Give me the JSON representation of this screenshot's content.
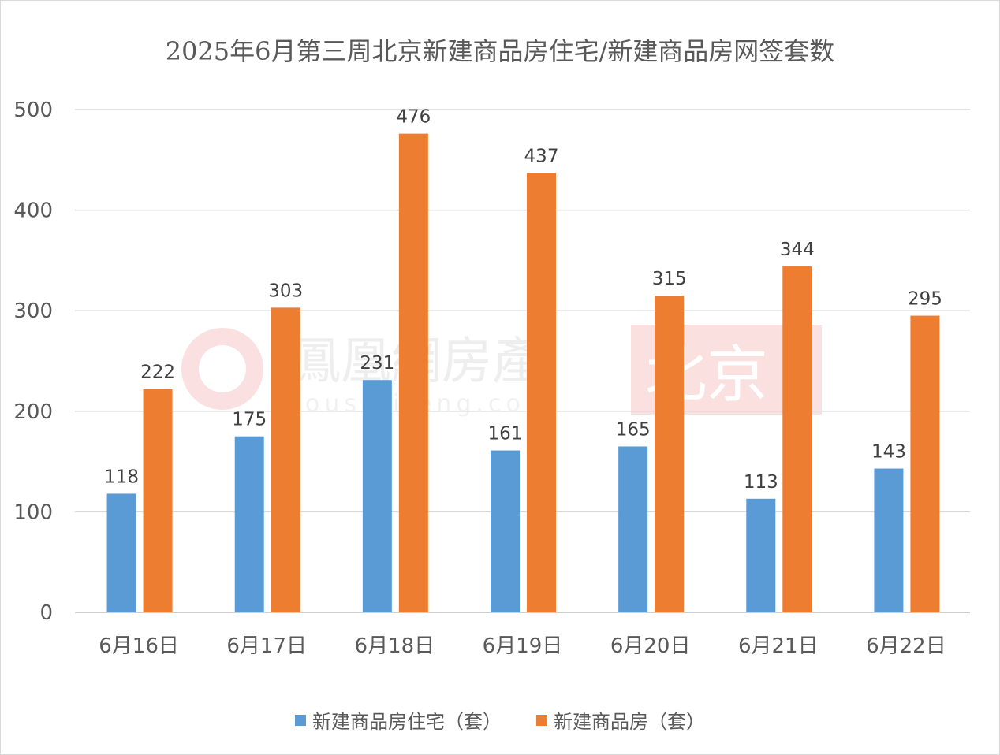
{
  "chart_data": {
    "type": "bar",
    "title": "2025年6月第三周北京新建商品房住宅/新建商品房网签套数",
    "categories": [
      "6月16日",
      "6月17日",
      "6月18日",
      "6月19日",
      "6月20日",
      "6月21日",
      "6月22日"
    ],
    "series": [
      {
        "name": "新建商品房住宅（套）",
        "color": "#5B9BD5",
        "values": [
          118,
          175,
          231,
          161,
          165,
          113,
          143
        ]
      },
      {
        "name": "新建商品房（套）",
        "color": "#ED7D31",
        "values": [
          222,
          303,
          476,
          437,
          315,
          344,
          295
        ]
      }
    ],
    "ylim": [
      0,
      500
    ],
    "yticks": [
      0,
      100,
      200,
      300,
      400,
      500
    ],
    "grid": true,
    "legend_position": "bottom",
    "data_labels": true
  },
  "watermark": {
    "brand": "鳳凰網房產",
    "url": "house.ifeng.com",
    "city": "北京"
  }
}
